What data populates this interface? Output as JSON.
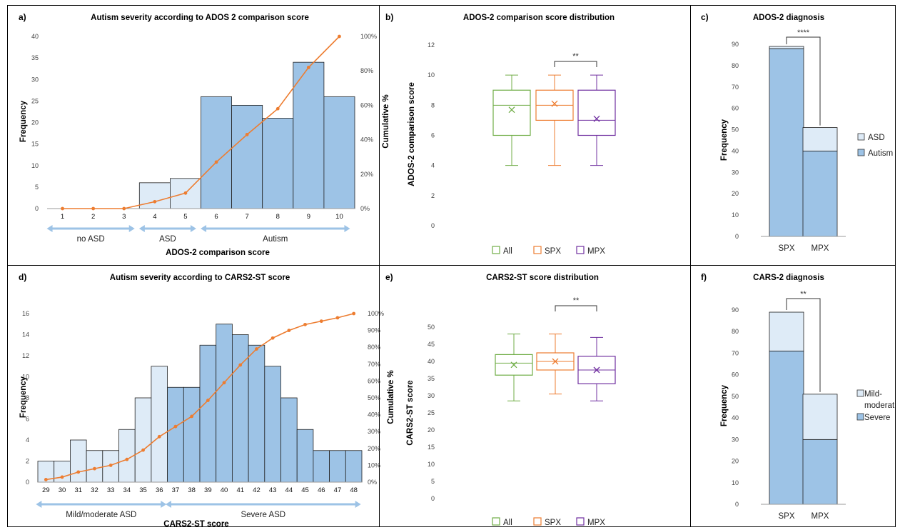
{
  "colors": {
    "dark_blue": "#9dc3e6",
    "light_blue": "#deebf7",
    "orange": "#ed7d31",
    "green": "#70ad47",
    "purple": "#7030a0",
    "arrow": "#9dc3e6"
  },
  "panels": [
    {
      "id": "a",
      "label": "a)",
      "title": "Autism severity according to ADOS 2 comparison score",
      "xlabel": "ADOS-2 comparison score",
      "ylabel": "Frequency",
      "y2label": "Cumulative %"
    },
    {
      "id": "b",
      "label": "b)",
      "title": "ADOS-2 comparison score distribution",
      "ylabel": "ADOS-2 comparison score",
      "significance": "**"
    },
    {
      "id": "c",
      "label": "c)",
      "title": "ADOS-2 diagnosis",
      "ylabel": "Frequency",
      "significance": "****"
    },
    {
      "id": "d",
      "label": "d)",
      "title": "Autism severity according to CARS2-ST score",
      "xlabel": "CARS2-ST score",
      "ylabel": "Frequency",
      "y2label": "Cumulative %"
    },
    {
      "id": "e",
      "label": "e)",
      "title": "CARS2-ST score distribution",
      "ylabel": "CARS2-ST score",
      "significance": "**"
    },
    {
      "id": "f",
      "label": "f)",
      "title": "CARS-2 diagnosis",
      "ylabel": "Frequency",
      "significance": "**"
    }
  ],
  "chart_data": [
    {
      "panel": "a",
      "type": "bar",
      "categories": [
        "1",
        "2",
        "3",
        "4",
        "5",
        "6",
        "7",
        "8",
        "9",
        "10"
      ],
      "values": [
        0,
        0,
        0,
        6,
        7,
        26,
        24,
        21,
        34,
        26
      ],
      "bar_groups": [
        "none",
        "none",
        "none",
        "ASD",
        "ASD",
        "Autism",
        "Autism",
        "Autism",
        "Autism",
        "Autism"
      ],
      "cumulative_percent": [
        0,
        0,
        0,
        4,
        9,
        27,
        43,
        58,
        82,
        100
      ],
      "ylim": [
        0,
        40
      ],
      "yticks": [
        0,
        5,
        10,
        15,
        20,
        25,
        30,
        35,
        40
      ],
      "y2ticks": [
        "0%",
        "20%",
        "40%",
        "60%",
        "80%",
        "100%"
      ],
      "ranges": [
        {
          "label": "no ASD",
          "from": "1",
          "to": "3"
        },
        {
          "label": "ASD",
          "from": "4",
          "to": "5"
        },
        {
          "label": "Autism",
          "from": "6",
          "to": "10"
        }
      ]
    },
    {
      "panel": "b",
      "type": "box",
      "ylim": [
        0,
        12
      ],
      "yticks": [
        0,
        2,
        4,
        6,
        8,
        10,
        12
      ],
      "series": [
        {
          "name": "All",
          "min": 4,
          "q1": 6,
          "median": 8,
          "q3": 9,
          "max": 10,
          "mean": 7.7
        },
        {
          "name": "SPX",
          "min": 4,
          "q1": 7,
          "median": 8,
          "q3": 9,
          "max": 10,
          "mean": 8.1
        },
        {
          "name": "MPX",
          "min": 4,
          "q1": 6,
          "median": 7,
          "q3": 9,
          "max": 10,
          "mean": 7.1
        }
      ]
    },
    {
      "panel": "c",
      "type": "bar",
      "categories": [
        "SPX",
        "MPX"
      ],
      "ylim": [
        0,
        90
      ],
      "yticks": [
        0,
        10,
        20,
        30,
        40,
        50,
        60,
        70,
        80,
        90
      ],
      "series": [
        {
          "name": "Autism",
          "values": [
            88,
            40
          ]
        },
        {
          "name": "ASD",
          "values": [
            1,
            11
          ]
        }
      ]
    },
    {
      "panel": "d",
      "type": "bar",
      "categories": [
        "29",
        "30",
        "31",
        "32",
        "33",
        "34",
        "35",
        "36",
        "37",
        "38",
        "39",
        "40",
        "41",
        "42",
        "43",
        "44",
        "45",
        "46",
        "47",
        "48"
      ],
      "values": [
        2,
        2,
        4,
        3,
        3,
        5,
        8,
        11,
        9,
        9,
        13,
        15,
        14,
        13,
        11,
        8,
        5,
        3,
        3,
        3
      ],
      "bar_groups": [
        "Mild",
        "Mild",
        "Mild",
        "Mild",
        "Mild",
        "Mild",
        "Mild",
        "Mild",
        "Severe",
        "Severe",
        "Severe",
        "Severe",
        "Severe",
        "Severe",
        "Severe",
        "Severe",
        "Severe",
        "Severe",
        "Severe",
        "Severe"
      ],
      "cumulative_percent": [
        1.5,
        3,
        6,
        8,
        10,
        13.5,
        19,
        27,
        33,
        39,
        48.5,
        59,
        69.5,
        79,
        85.5,
        90,
        93.5,
        95.5,
        97.5,
        100
      ],
      "ylim": [
        0,
        16
      ],
      "yticks": [
        0,
        2,
        4,
        6,
        8,
        10,
        12,
        14,
        16
      ],
      "y2ticks": [
        "0%",
        "10%",
        "20%",
        "30%",
        "40%",
        "50%",
        "60%",
        "70%",
        "80%",
        "90%",
        "100%"
      ],
      "ranges": [
        {
          "label": "Mild/moderate ASD",
          "from": "29",
          "to": "36"
        },
        {
          "label": "Severe ASD",
          "from": "37",
          "to": "48"
        }
      ]
    },
    {
      "panel": "e",
      "type": "box",
      "ylim": [
        0,
        50
      ],
      "yticks": [
        0,
        5,
        10,
        15,
        20,
        25,
        30,
        35,
        40,
        45,
        50
      ],
      "series": [
        {
          "name": "All",
          "min": 28.5,
          "q1": 36,
          "median": 39.5,
          "q3": 42,
          "max": 48,
          "mean": 39
        },
        {
          "name": "SPX",
          "min": 30.5,
          "q1": 37.5,
          "median": 40,
          "q3": 42.5,
          "max": 48,
          "mean": 40
        },
        {
          "name": "MPX",
          "min": 28.5,
          "q1": 33.5,
          "median": 37.5,
          "q3": 41.5,
          "max": 47,
          "mean": 37.5
        }
      ]
    },
    {
      "panel": "f",
      "type": "bar",
      "categories": [
        "SPX",
        "MPX"
      ],
      "ylim": [
        0,
        90
      ],
      "yticks": [
        0,
        10,
        20,
        30,
        40,
        50,
        60,
        70,
        80,
        90
      ],
      "series": [
        {
          "name": "Severe",
          "values": [
            71,
            30
          ]
        },
        {
          "name": "Mild-moderate",
          "values": [
            18,
            21
          ]
        }
      ],
      "legend_lines": [
        "Mild-",
        "moderat",
        "Severe"
      ]
    }
  ]
}
